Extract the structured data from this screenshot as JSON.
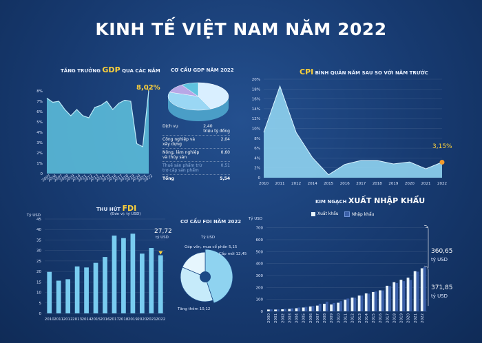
{
  "page": {
    "title": "KINH TẾ VIỆT NAM NĂM 2022"
  },
  "gdp_growth": {
    "title_pre": "TĂNG TRƯỞNG ",
    "title_hl": "GDP",
    "title_post": " QUA CÁC NĂM",
    "callout": "8,02%",
    "y_ticks": [
      "0",
      "1%",
      "2%",
      "3%",
      "4%",
      "5%",
      "6%",
      "7%",
      "8%"
    ],
    "x_ticks": [
      "2005",
      "2006",
      "2007",
      "2008",
      "2009",
      "2010",
      "2011",
      "2012",
      "2013",
      "2014",
      "2015",
      "2016",
      "2017",
      "2018",
      "2019",
      "2020",
      "2021",
      "2022"
    ]
  },
  "gdp_structure": {
    "title": "CƠ CẤU GDP NĂM 2022",
    "rows": [
      {
        "name": "Dịch vụ",
        "value": "2,40\ntriệu tỷ đồng"
      },
      {
        "name": "Công nghiệp và xây dựng",
        "value": "2,04"
      },
      {
        "name": "Nông, lâm nghiệp và thủy sản",
        "value": "0,60"
      },
      {
        "name": "Thuế sản phẩm trừ trợ cấp sản phẩm",
        "value": "0,51"
      },
      {
        "name": "Tổng",
        "value": "5,54"
      }
    ]
  },
  "cpi": {
    "title_hl": "CPI",
    "title_post": " BÌNH QUÂN NĂM SAU SO VỚI NĂM TRƯỚC",
    "callout": "3,15%",
    "y_ticks": [
      "0",
      "2%",
      "4%",
      "6%",
      "8%",
      "10%",
      "12%",
      "14%",
      "16%",
      "18%",
      "20%"
    ],
    "x_ticks": [
      "2010",
      "2011",
      "2012",
      "2014",
      "2015",
      "2016",
      "2017",
      "2018",
      "2019",
      "2020",
      "2021",
      "2022"
    ]
  },
  "fdi": {
    "title_pre": "THU HÚT ",
    "title_hl": "FDI",
    "unit": "(Đơn vị: tỷ USD)",
    "y_unit": "Tỷ USD",
    "callout": "27,72",
    "callout_unit": "tỷ USD",
    "y_ticks": [
      "0",
      "5",
      "10",
      "15",
      "20",
      "25",
      "30",
      "35",
      "40",
      "45"
    ],
    "x_ticks": [
      "2010",
      "2011",
      "2012",
      "2013",
      "2014",
      "2015",
      "2016",
      "2017",
      "2018",
      "2019",
      "2020",
      "2021",
      "2022"
    ]
  },
  "fdi_structure": {
    "title": "CƠ CẤU FDI NĂM 2022",
    "unit": "Tỷ USD",
    "label_capital_contribution": "Góp vốn, mua cổ phần 5,15",
    "label_new": "Cấp mới 12,45",
    "label_increase": "Tăng thêm 10,12"
  },
  "trade": {
    "title_pre": "KIM NGẠCH ",
    "title_hl": "XUẤT NHẬP KHẨU",
    "legend_export": "Xuất khẩu",
    "legend_import": "Nhập khẩu",
    "y_unit": "Tỷ USD",
    "callout_export": "360,65",
    "callout_export_unit": "tỷ USD",
    "callout_import": "371,85",
    "callout_import_unit": "tỷ USD",
    "y_ticks": [
      "0",
      "100",
      "200",
      "300",
      "400",
      "500",
      "600",
      "700"
    ],
    "x_ticks": [
      "2000",
      "2001",
      "2002",
      "2003",
      "2004",
      "2005",
      "2006",
      "2007",
      "2008",
      "2009",
      "2010",
      "2011",
      "2012",
      "2013",
      "2014",
      "2015",
      "2016",
      "2017",
      "2018",
      "2019",
      "2020",
      "2021",
      "2022"
    ]
  },
  "colors": {
    "area_fill": "#5fc3df",
    "accent_yellow": "#ffd23a",
    "callout_orange": "#f39a2b",
    "bar_light": "#79ccf0",
    "export_color": "#e9f4fb",
    "import_color": "#3a5fa8"
  },
  "chart_data": [
    {
      "type": "area",
      "title": "TĂNG TRƯỞNG GDP QUA CÁC NĂM",
      "x": [
        2005,
        2006,
        2007,
        2008,
        2009,
        2010,
        2011,
        2012,
        2013,
        2014,
        2015,
        2016,
        2017,
        2018,
        2019,
        2020,
        2021,
        2022
      ],
      "values": [
        7.3,
        6.9,
        7.0,
        6.2,
        5.6,
        6.2,
        5.6,
        5.4,
        6.4,
        6.6,
        7.0,
        6.2,
        6.8,
        7.1,
        7.0,
        2.9,
        2.6,
        8.02
      ],
      "ylim": [
        0,
        8
      ],
      "grid": false
    },
    {
      "type": "pie",
      "title": "CƠ CẤU GDP NĂM 2022",
      "categories": [
        "Dịch vụ",
        "Công nghiệp và xây dựng",
        "Nông, lâm nghiệp và thủy sản",
        "Thuế sản phẩm trừ trợ cấp sản phẩm"
      ],
      "values": [
        2.4,
        2.04,
        0.6,
        0.51
      ]
    },
    {
      "type": "area",
      "title": "CPI BÌNH QUÂN NĂM SAU SO VỚI NĂM TRƯỚC",
      "x": [
        2010,
        2011,
        2012,
        2014,
        2015,
        2016,
        2017,
        2018,
        2019,
        2020,
        2021,
        2022
      ],
      "values": [
        9.2,
        18.6,
        9.2,
        4.1,
        0.6,
        2.7,
        3.5,
        3.5,
        2.8,
        3.2,
        1.8,
        3.15
      ],
      "ylim": [
        0,
        20
      ],
      "grid": true
    },
    {
      "type": "bar",
      "title": "THU HÚT FDI",
      "categories": [
        "2010",
        "2011",
        "2012",
        "2013",
        "2014",
        "2015",
        "2016",
        "2017",
        "2018",
        "2019",
        "2020",
        "2021",
        "2022"
      ],
      "values": [
        19.8,
        15.6,
        16.3,
        22.4,
        21.9,
        24.1,
        26.9,
        37.1,
        35.9,
        38.0,
        28.5,
        31.2,
        27.72
      ],
      "ylim": [
        0,
        45
      ],
      "grid": true
    },
    {
      "type": "pie",
      "title": "CƠ CẤU FDI NĂM 2022",
      "categories": [
        "Cấp mới",
        "Tăng thêm",
        "Góp vốn, mua cổ phần"
      ],
      "values": [
        12.45,
        10.12,
        5.15
      ]
    },
    {
      "type": "bar",
      "title": "KIM NGẠCH XUẤT NHẬP KHẨU",
      "categories": [
        "2000",
        "2001",
        "2002",
        "2003",
        "2004",
        "2005",
        "2006",
        "2007",
        "2008",
        "2009",
        "2010",
        "2011",
        "2012",
        "2013",
        "2014",
        "2015",
        "2016",
        "2017",
        "2018",
        "2019",
        "2020",
        "2021",
        "2022"
      ],
      "series": [
        {
          "name": "Xuất khẩu",
          "values": [
            15,
            15,
            17,
            20,
            26,
            32,
            40,
            48,
            63,
            57,
            72,
            97,
            115,
            132,
            150,
            162,
            176,
            214,
            244,
            264,
            282,
            336,
            360.65
          ]
        },
        {
          "name": "Nhập khẩu",
          "values": [
            16,
            16,
            20,
            25,
            32,
            37,
            45,
            63,
            81,
            70,
            85,
            107,
            114,
            132,
            148,
            166,
            175,
            211,
            237,
            253,
            263,
            332,
            371.85
          ]
        }
      ],
      "ylim": [
        0,
        750
      ],
      "grid": true
    }
  ]
}
